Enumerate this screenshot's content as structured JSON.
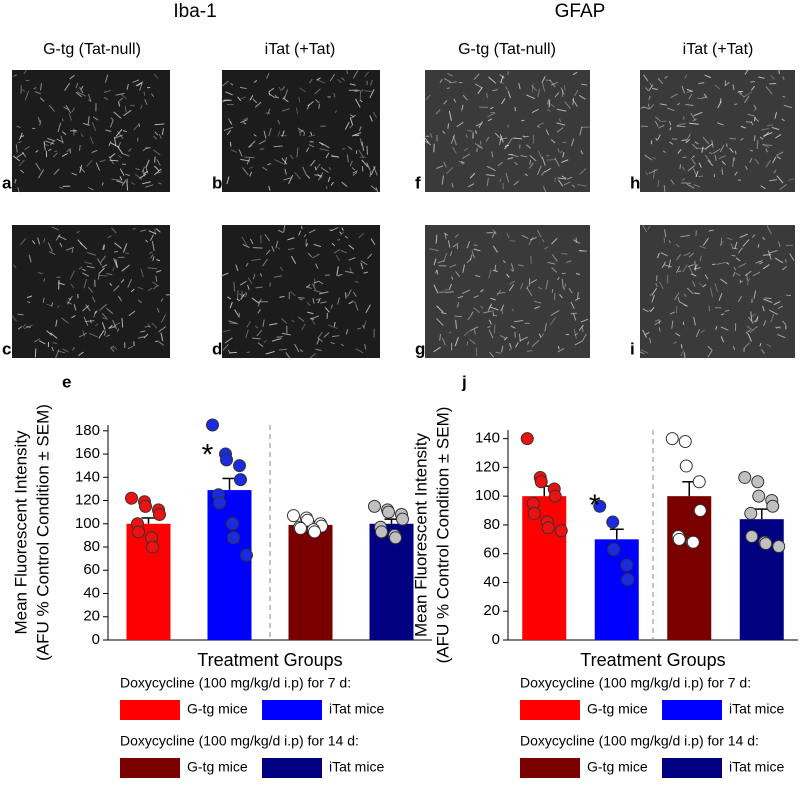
{
  "headers": [
    "Iba-1",
    "GFAP"
  ],
  "column_labels": [
    "G-tg (Tat-null)",
    "iTat (+Tat)",
    "G-tg (Tat-null)",
    "iTat (+Tat)"
  ],
  "image_labels": [
    "a",
    "b",
    "f",
    "h",
    "c",
    "d",
    "g",
    "i"
  ],
  "chart_data": [
    {
      "type": "bar",
      "panel_label": "e",
      "y_label": [
        "Mean Fluorescent Intensity",
        "(AFU % Control Condition ± SEM)"
      ],
      "x_label": "Treatment Groups",
      "ylim": [
        0,
        185
      ],
      "yticks": [
        0,
        20,
        40,
        60,
        80,
        100,
        120,
        140,
        160,
        180
      ],
      "annotation": "*",
      "legend_groups": [
        {
          "title": "Doxycycline (100 mg/kg/d i.p) for 7 d:",
          "series": [
            {
              "name": "G-tg mice",
              "color": "#ff0000",
              "point_color": "#ee1111",
              "values": [
                100
              ],
              "errors": [
                5
              ],
              "points": [
                122,
                119,
                115,
                112,
                108,
                100,
                93,
                88,
                80
              ]
            },
            {
              "name": "iTat mice",
              "color": "#0000ff",
              "point_color": "#1a2be0",
              "values": [
                129
              ],
              "errors": [
                10
              ],
              "points": [
                185,
                160,
                155,
                150,
                138,
                125,
                118,
                100,
                88,
                73
              ]
            }
          ]
        },
        {
          "title": "Doxycycline (100 mg/kg/d i.p) for 14 d:",
          "series": [
            {
              "name": "G-tg mice",
              "color": "#7a0000",
              "point_color": "#ffffff",
              "values": [
                99
              ],
              "errors": [
                3
              ],
              "points": [
                107,
                105,
                103,
                100,
                98,
                97,
                96,
                95,
                93
              ]
            },
            {
              "name": "iTat mice",
              "color": "#000080",
              "point_color": "#c0c0c0",
              "values": [
                100
              ],
              "errors": [
                4
              ],
              "points": [
                115,
                112,
                110,
                108,
                104,
                97,
                93,
                90,
                88
              ]
            }
          ]
        }
      ]
    },
    {
      "type": "bar",
      "panel_label": "j",
      "y_label": [
        "Mean Fluorescent Intensity",
        "(AFU % Control Condition ± SEM)"
      ],
      "x_label": "Treatment Groups",
      "ylim": [
        0,
        146
      ],
      "yticks": [
        0,
        20,
        40,
        60,
        80,
        100,
        120,
        140
      ],
      "annotation": "*",
      "legend_groups": [
        {
          "title": "Doxycycline (100 mg/kg/d i.p) for 7 d:",
          "series": [
            {
              "name": "G-tg mice",
              "color": "#ff0000",
              "point_color": "#ee1111",
              "values": [
                100
              ],
              "errors": [
                7
              ],
              "points": [
                140,
                113,
                110,
                105,
                100,
                95,
                88,
                82,
                78,
                76
              ]
            },
            {
              "name": "iTat mice",
              "color": "#0000ff",
              "point_color": "#1a2be0",
              "values": [
                70
              ],
              "errors": [
                7
              ],
              "points": [
                93,
                82,
                63,
                52,
                42
              ]
            }
          ]
        },
        {
          "title": "Doxycycline (100 mg/kg/d i.p) for 14 d:",
          "series": [
            {
              "name": "G-tg mice",
              "color": "#7a0000",
              "point_color": "#ffffff",
              "values": [
                100
              ],
              "errors": [
                10
              ],
              "points": [
                140,
                138,
                121,
                110,
                90,
                72,
                70,
                68,
                68
              ]
            },
            {
              "name": "iTat mice",
              "color": "#000080",
              "point_color": "#c0c0c0",
              "values": [
                84
              ],
              "errors": [
                7
              ],
              "points": [
                113,
                110,
                100,
                97,
                93,
                88,
                72,
                68,
                67,
                65
              ]
            }
          ]
        }
      ]
    }
  ]
}
